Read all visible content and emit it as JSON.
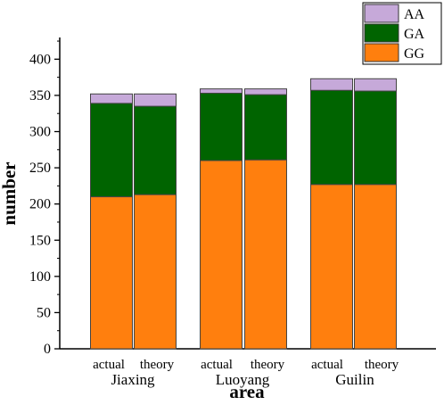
{
  "chart_data": {
    "type": "bar",
    "stacked": true,
    "xlabel": "area",
    "ylabel": "number",
    "ylim": [
      0,
      430
    ],
    "yticks": [
      0,
      50,
      100,
      150,
      200,
      250,
      300,
      350,
      400
    ],
    "legend_position": "top-right",
    "groups": [
      {
        "name": "Jiaxing",
        "categories": [
          "actual",
          "theory"
        ]
      },
      {
        "name": "Luoyang",
        "categories": [
          "actual",
          "theory"
        ]
      },
      {
        "name": "Guilin",
        "categories": [
          "actual",
          "theory"
        ]
      }
    ],
    "series": [
      {
        "name": "GG",
        "color": "#ff7f0e",
        "values": [
          210,
          213,
          260,
          261,
          227,
          227
        ]
      },
      {
        "name": "GA",
        "color": "#006400",
        "values": [
          129,
          122,
          93,
          90,
          130,
          129
        ]
      },
      {
        "name": "AA",
        "color": "#c6a9d9",
        "values": [
          13,
          17,
          6,
          8,
          16,
          17
        ]
      }
    ]
  }
}
